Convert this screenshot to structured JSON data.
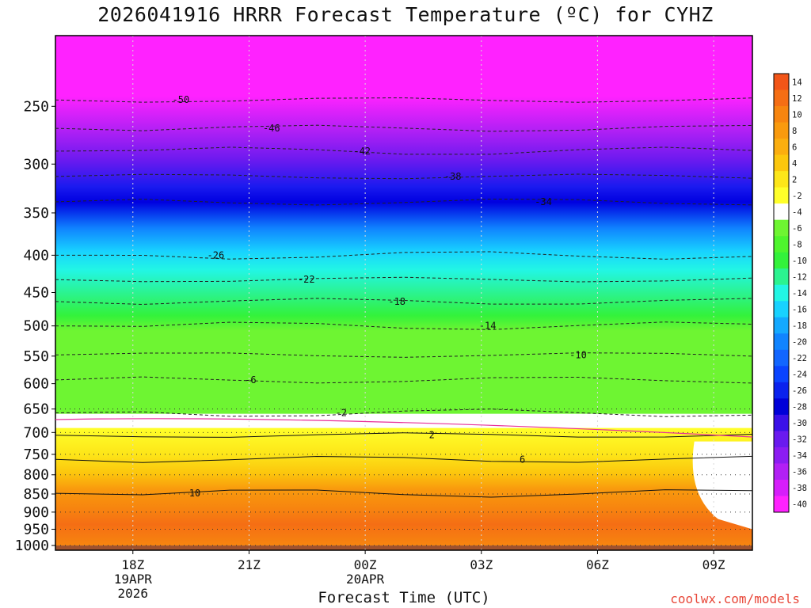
{
  "chart_data": {
    "type": "heatmap",
    "title": "2026041916 HRRR Forecast Temperature (ºC) for CYHZ",
    "xlabel": "Forecast Time (UTC)",
    "ylabel": "",
    "x_ticks": [
      {
        "hour": 18,
        "label": "18Z",
        "sub": [
          "19APR",
          "2026"
        ]
      },
      {
        "hour": 21,
        "label": "21Z",
        "sub": []
      },
      {
        "hour": 24,
        "label": "00Z",
        "sub": [
          "20APR"
        ]
      },
      {
        "hour": 27,
        "label": "03Z",
        "sub": []
      },
      {
        "hour": 30,
        "label": "06Z",
        "sub": []
      },
      {
        "hour": 33,
        "label": "09Z",
        "sub": []
      }
    ],
    "xlim": [
      16,
      34
    ],
    "y_ticks": [
      250,
      300,
      350,
      400,
      450,
      500,
      550,
      600,
      650,
      700,
      750,
      800,
      850,
      900,
      950,
      1000
    ],
    "ylim": [
      1015,
      200
    ],
    "y_scale": "log",
    "colorbar": {
      "labels": [
        "14",
        "12",
        "10",
        "8",
        "6",
        "4",
        "2",
        "-2",
        "-4",
        "-6",
        "-8",
        "-10",
        "-12",
        "-14",
        "-16",
        "-18",
        "-20",
        "-22",
        "-24",
        "-26",
        "-28",
        "-30",
        "-32",
        "-34",
        "-36",
        "-38",
        "-40"
      ],
      "colors": [
        "#f25518",
        "#f56e14",
        "#f7850f",
        "#f99a0d",
        "#fbae0f",
        "#fcc70d",
        "#fde619",
        "#ffff2a",
        "#ffffff",
        "#6ef532",
        "#4ef52d",
        "#33f23b",
        "#2bf390",
        "#22f6e4",
        "#18d2ff",
        "#14a9ff",
        "#1084ff",
        "#1266ff",
        "#0a44ff",
        "#0a22ee",
        "#0000d8",
        "#3b10e8",
        "#6a1aef",
        "#8c1cf2",
        "#b220f5",
        "#d61efb",
        "#ff22ff"
      ]
    },
    "isotherms": [
      {
        "label": "-50",
        "p": 245
      },
      {
        "label": "-46",
        "p": 268
      },
      {
        "label": "-42",
        "p": 288
      },
      {
        "label": "-38",
        "p": 312
      },
      {
        "label": "-34",
        "p": 338
      },
      {
        "label": "-26",
        "p": 400
      },
      {
        "label": "-22",
        "p": 432
      },
      {
        "label": "-18",
        "p": 463
      },
      {
        "label": "-14",
        "p": 500
      },
      {
        "label": "-10",
        "p": 548
      },
      {
        "label": "-6",
        "p": 593
      },
      {
        "label": "-2",
        "p": 658
      },
      {
        "label": "2",
        "p": 706
      },
      {
        "label": "6",
        "p": 762
      },
      {
        "label": "10",
        "p": 848
      }
    ],
    "surface_color": "#a0522d"
  },
  "credit": "coolwx.com/models"
}
